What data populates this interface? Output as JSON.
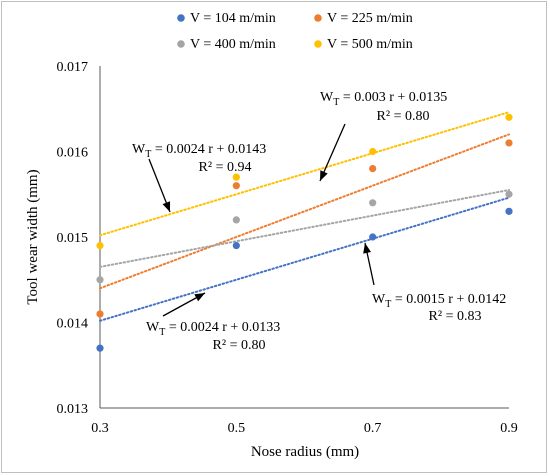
{
  "chart_data": {
    "type": "scatter",
    "xlabel": "Nose radius (mm)",
    "ylabel": "Tool wear width (mm)",
    "xlim": [
      0.3,
      0.9
    ],
    "ylim": [
      0.013,
      0.017
    ],
    "x_ticks": [
      "0.3",
      "0.5",
      "0.7",
      "0.9"
    ],
    "y_ticks": [
      "0.013",
      "0.014",
      "0.015",
      "0.016",
      "0.017"
    ],
    "legend_position": "top",
    "trendline_style": "dotted linear",
    "series": [
      {
        "name": "V = 104 m/min",
        "color": "#4472c4",
        "x": [
          0.3,
          0.5,
          0.7,
          0.9
        ],
        "y": [
          0.0137,
          0.0149,
          0.015,
          0.0153
        ],
        "trend": {
          "slope": 0.0024,
          "intercept": 0.0133
        }
      },
      {
        "name": "V = 225 m/min",
        "color": "#ed7d31",
        "x": [
          0.3,
          0.5,
          0.7,
          0.9
        ],
        "y": [
          0.0141,
          0.0156,
          0.0158,
          0.0161
        ],
        "trend": {
          "slope": 0.003,
          "intercept": 0.0135
        }
      },
      {
        "name": "V = 400 m/min",
        "color": "#a5a5a5",
        "x": [
          0.3,
          0.5,
          0.7,
          0.9
        ],
        "y": [
          0.0145,
          0.0152,
          0.0154,
          0.0155
        ],
        "trend": {
          "slope": 0.0015,
          "intercept": 0.0142
        }
      },
      {
        "name": "V = 500 m/min",
        "color": "#ffc000",
        "x": [
          0.3,
          0.5,
          0.7,
          0.9
        ],
        "y": [
          0.0149,
          0.0157,
          0.016,
          0.0164
        ],
        "trend": {
          "slope": 0.0024,
          "intercept": 0.0143
        }
      }
    ],
    "annotations": [
      {
        "eq_prefix": "W",
        "eq_sub": "T",
        "eq_rest": " = 0.0024 r + 0.0143",
        "r2": "R² = 0.94"
      },
      {
        "eq_prefix": "W",
        "eq_sub": "T",
        "eq_rest": " = 0.003 r + 0.0135",
        "r2": "R² = 0.80"
      },
      {
        "eq_prefix": "W",
        "eq_sub": "T",
        "eq_rest": " = 0.0015 r + 0.0142",
        "r2": "R² = 0.83"
      },
      {
        "eq_prefix": "W",
        "eq_sub": "T",
        "eq_rest": " = 0.0024 r + 0.0133",
        "r2": "R² = 0.80"
      }
    ]
  }
}
